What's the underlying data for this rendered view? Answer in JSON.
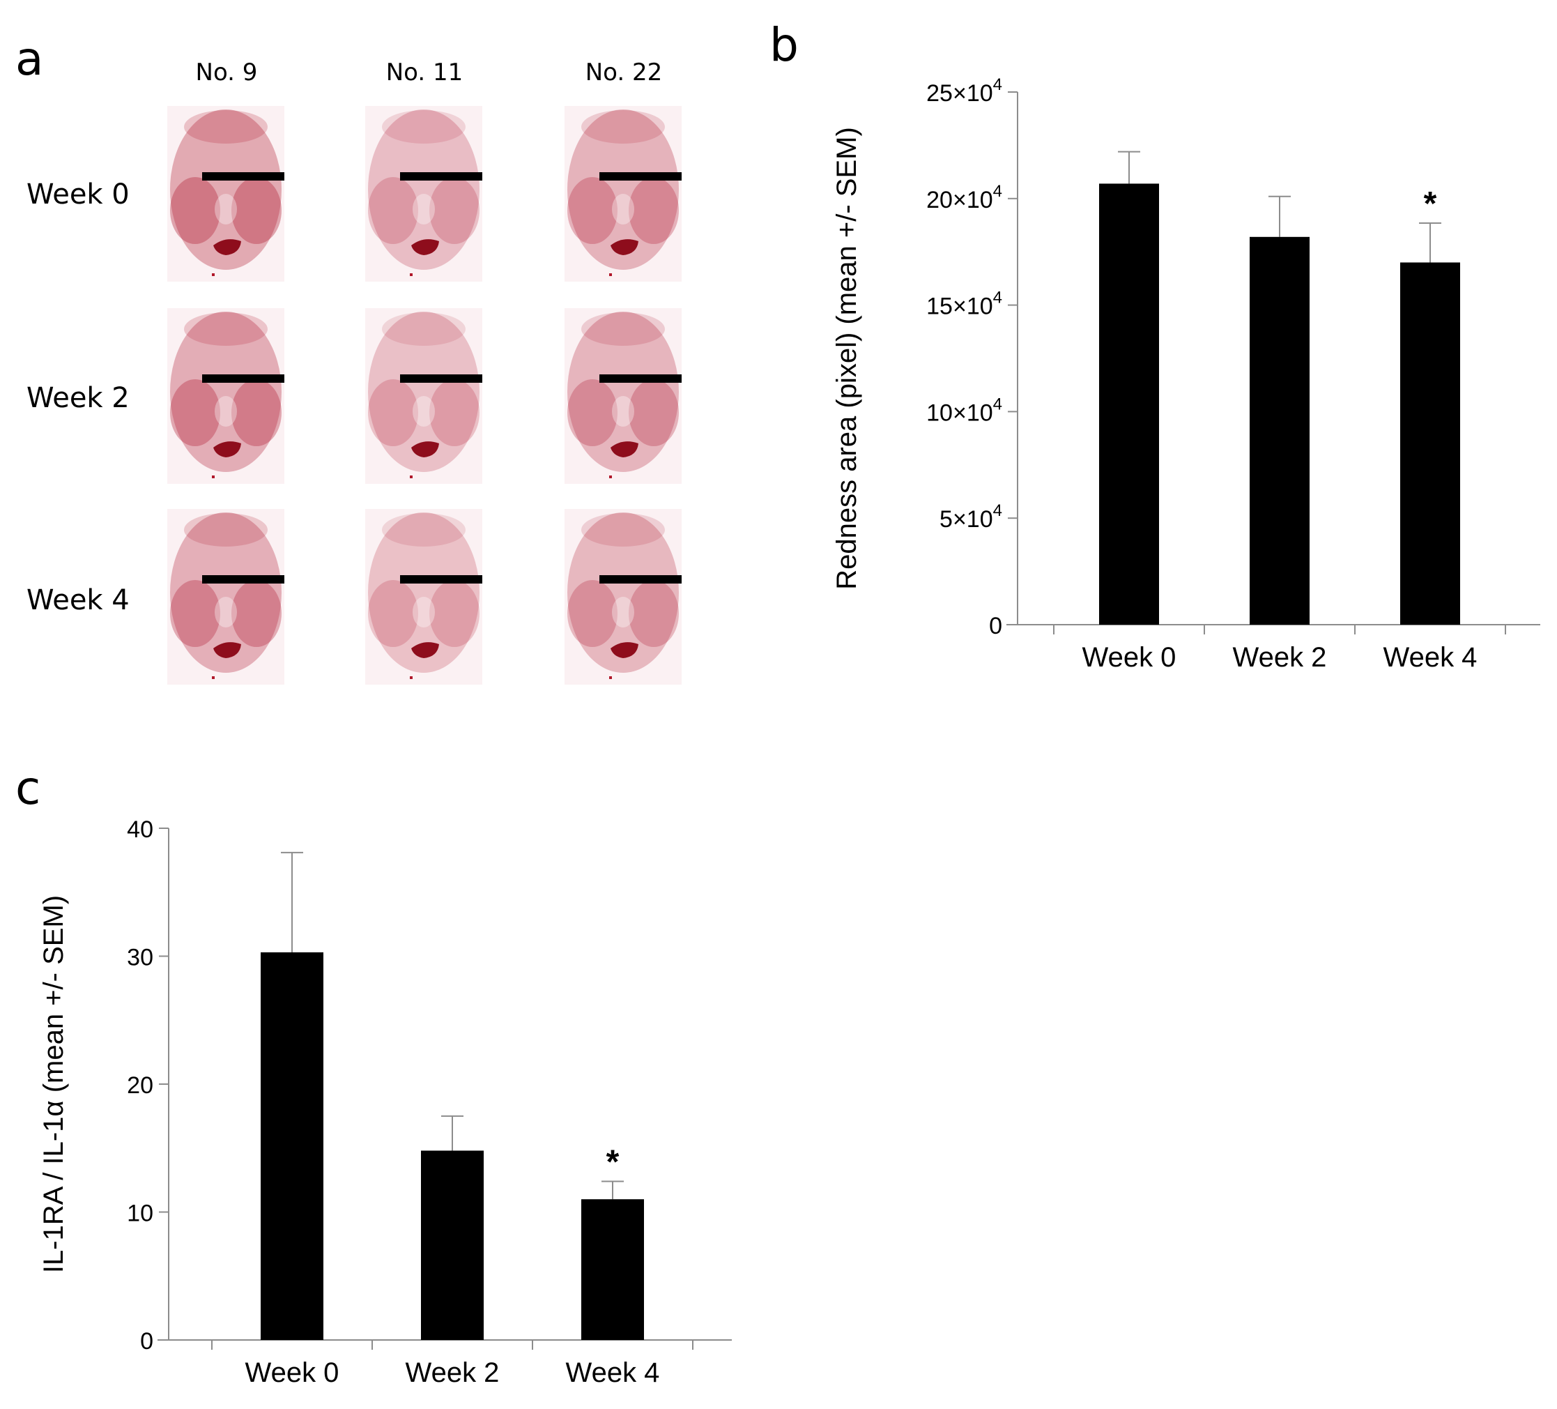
{
  "panels": {
    "a": {
      "letter": "a",
      "columns": [
        "No. 9",
        "No. 11",
        "No. 22"
      ],
      "rows": [
        "Week 0",
        "Week 2",
        "Week 4"
      ],
      "image_description_color": "#b4243a"
    },
    "b": {
      "letter": "b"
    },
    "c": {
      "letter": "c"
    }
  },
  "chart_data": [
    {
      "panel": "b",
      "type": "bar",
      "categories": [
        "Week 0",
        "Week 2",
        "Week 4"
      ],
      "values": [
        207000,
        182000,
        170000
      ],
      "errors": [
        15000,
        19000,
        18500
      ],
      "significance": [
        "",
        "",
        "*"
      ],
      "ylim": [
        0,
        250000
      ],
      "yticks": [
        0,
        50000,
        100000,
        150000,
        200000,
        250000
      ],
      "ytick_labels": [
        {
          "base": "0",
          "exp": ""
        },
        {
          "base": "5×10",
          "exp": "4"
        },
        {
          "base": "10×10",
          "exp": "4"
        },
        {
          "base": "15×10",
          "exp": "4"
        },
        {
          "base": "20×10",
          "exp": "4"
        },
        {
          "base": "25×10",
          "exp": "4"
        }
      ],
      "ylabel": "Redness area (pixel)  (mean +/- SEM)",
      "xlabel": "",
      "title": "",
      "bar_color": "#000000"
    },
    {
      "panel": "c",
      "type": "bar",
      "categories": [
        "Week 0",
        "Week 2",
        "Week 4"
      ],
      "values": [
        30.3,
        14.8,
        11.0
      ],
      "errors": [
        7.8,
        2.7,
        1.4
      ],
      "significance": [
        "",
        "",
        "*"
      ],
      "ylim": [
        0,
        40
      ],
      "yticks": [
        0,
        10,
        20,
        30,
        40
      ],
      "ytick_labels": [
        {
          "base": "0",
          "exp": ""
        },
        {
          "base": "10",
          "exp": ""
        },
        {
          "base": "20",
          "exp": ""
        },
        {
          "base": "30",
          "exp": ""
        },
        {
          "base": "40",
          "exp": ""
        }
      ],
      "ylabel": "IL-1RA / IL-1α (mean +/- SEM)",
      "xlabel": "",
      "title": "",
      "bar_color": "#000000"
    }
  ]
}
